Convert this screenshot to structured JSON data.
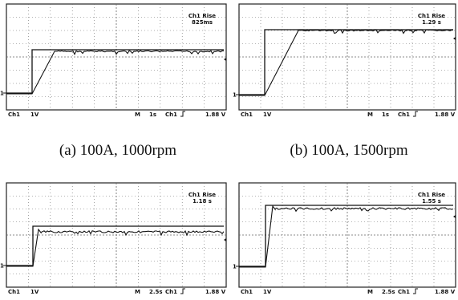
{
  "panels": [
    {
      "readout_label": "Ch1 Rise",
      "readout_value": "825ms",
      "ground_marker": "1",
      "channel": "Ch1",
      "volts": "1V",
      "timebase_label": "M",
      "timebase": "1s",
      "trigger_channel": "Ch1",
      "trigger_level": "1.88 V",
      "caption": "(a) 100A, 1000rpm"
    },
    {
      "readout_label": "Ch1 Rise",
      "readout_value": "1.29 s",
      "ground_marker": "1",
      "channel": "Ch1",
      "volts": "1V",
      "timebase_label": "M",
      "timebase": "1s",
      "trigger_channel": "Ch1",
      "trigger_level": "1.88 V",
      "caption": "(b) 100A, 1500rpm"
    },
    {
      "readout_label": "Ch1 Rise",
      "readout_value": "1.18 s",
      "ground_marker": "1",
      "channel": "Ch1",
      "volts": "1V",
      "timebase_label": "M",
      "timebase": "2.5s",
      "trigger_channel": "Ch1",
      "trigger_level": "1.88 V"
    },
    {
      "readout_label": "Ch1 Rise",
      "readout_value": "1.55 s",
      "ground_marker": "1",
      "channel": "Ch1",
      "volts": "1V",
      "timebase_label": "M",
      "timebase": "2.5s",
      "trigger_channel": "Ch1",
      "trigger_level": "1.88 V"
    }
  ]
}
